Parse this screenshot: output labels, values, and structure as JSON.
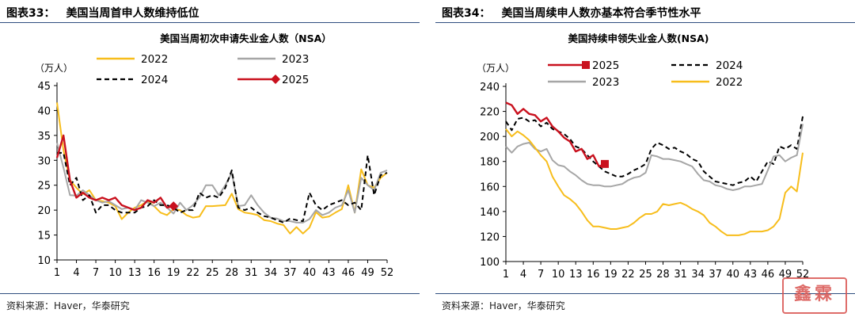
{
  "left": {
    "figure_label": "图表33：",
    "figure_title": "美国当周首申人数维持低位",
    "source": "资料来源：Haver，华泰研究"
  },
  "right": {
    "figure_label": "图表34：",
    "figure_title": "美国当周续申人数亦基本符合季节性水平",
    "source": "资料来源：Haver，华泰研究"
  },
  "watermark": {
    "text": "鑫霖"
  },
  "colors": {
    "y2022": "#f7bd1b",
    "y2023": "#a6a6a6",
    "y2024": "#000000",
    "y2025": "#c9111e",
    "rule": "#2f4e7f"
  },
  "chart_data": [
    {
      "type": "line",
      "title": "美国当周初次申请失业金人数（NSA）",
      "ylabel": "（万人）",
      "xlabel": "",
      "ylim": [
        10,
        45
      ],
      "yticks": [
        10,
        15,
        20,
        25,
        30,
        35,
        40,
        45
      ],
      "xlim": [
        1,
        52
      ],
      "xticks": [
        1,
        4,
        7,
        10,
        13,
        16,
        19,
        22,
        25,
        28,
        31,
        34,
        37,
        40,
        43,
        46,
        49,
        52
      ],
      "legend": "top",
      "series": [
        {
          "name": "2022",
          "color": "#f7bd1b",
          "style": "solid",
          "marker": "none",
          "values": [
            41.6,
            32.0,
            26.0,
            24.5,
            23.2,
            24.0,
            22.0,
            21.8,
            21.5,
            20.8,
            18.2,
            19.5,
            20.5,
            21.0,
            21.8,
            20.8,
            19.5,
            19.0,
            20.2,
            20.0,
            19.0,
            18.5,
            18.7,
            20.8,
            20.8,
            20.9,
            21.0,
            23.3,
            20.2,
            19.5,
            19.3,
            19.0,
            18.0,
            17.8,
            17.3,
            17.0,
            15.3,
            16.6,
            15.3,
            16.5,
            19.6,
            18.5,
            18.7,
            19.5,
            20.2,
            25.0,
            19.5,
            28.2,
            25.0,
            24.5,
            26.5,
            27.5
          ]
        },
        {
          "name": "2023",
          "color": "#a6a6a6",
          "style": "solid",
          "marker": "none",
          "values": [
            33.5,
            28.5,
            23.0,
            22.9,
            24.0,
            23.0,
            22.0,
            21.5,
            21.8,
            21.0,
            20.2,
            20.5,
            20.0,
            22.0,
            21.5,
            20.8,
            21.5,
            20.5,
            19.3,
            21.5,
            20.0,
            21.0,
            22.5,
            25.0,
            25.0,
            23.0,
            25.0,
            27.5,
            20.8,
            21.0,
            23.0,
            21.0,
            19.5,
            18.5,
            18.3,
            17.8,
            17.8,
            17.5,
            17.5,
            18.2,
            20.0,
            19.0,
            19.5,
            20.5,
            21.0,
            24.0,
            19.5,
            26.5,
            25.0,
            24.0,
            27.5,
            28.0
          ]
        },
        {
          "name": "2024",
          "color": "#000000",
          "style": "dashed",
          "marker": "none",
          "values": [
            31.5,
            31.5,
            25.0,
            26.5,
            22.0,
            23.0,
            19.5,
            21.0,
            21.0,
            20.0,
            19.5,
            19.5,
            19.5,
            20.5,
            20.8,
            22.0,
            21.0,
            21.0,
            20.5,
            19.5,
            20.0,
            20.0,
            23.5,
            22.5,
            23.0,
            22.5,
            24.5,
            28.0,
            20.5,
            20.0,
            20.5,
            19.5,
            18.8,
            18.5,
            18.0,
            17.5,
            18.3,
            18.0,
            17.8,
            23.5,
            21.0,
            20.0,
            21.0,
            21.5,
            22.0,
            21.0,
            21.5,
            20.0,
            31.0,
            23.0,
            27.0,
            27.5
          ]
        },
        {
          "name": "2025",
          "color": "#c9111e",
          "style": "solid",
          "marker": "diamond",
          "values": [
            30.5,
            35.0,
            26.0,
            22.5,
            23.5,
            22.5,
            22.0,
            22.5,
            22.0,
            22.5,
            21.0,
            20.5,
            20.0,
            20.5,
            22.0,
            21.5,
            22.5,
            20.5,
            20.8
          ]
        }
      ]
    },
    {
      "type": "line",
      "title": "美国持续申领失业金人数(NSA)",
      "ylabel": "（万人）",
      "xlabel": "",
      "ylim": [
        100,
        240
      ],
      "yticks": [
        100,
        120,
        140,
        160,
        180,
        200,
        220,
        240
      ],
      "xlim": [
        1,
        52
      ],
      "xticks": [
        1,
        4,
        7,
        10,
        13,
        16,
        19,
        22,
        25,
        28,
        31,
        34,
        37,
        40,
        43,
        46,
        49,
        52
      ],
      "legend": "top",
      "series": [
        {
          "name": "2025",
          "color": "#c9111e",
          "style": "solid",
          "marker": "square",
          "values": [
            227,
            225,
            218,
            222,
            218,
            217,
            212,
            215,
            208,
            204,
            199,
            196,
            188,
            190,
            182,
            185,
            176,
            178
          ]
        },
        {
          "name": "2024",
          "color": "#000000",
          "style": "dashed",
          "marker": "none",
          "values": [
            212,
            205,
            214,
            215,
            212,
            213,
            208,
            211,
            206,
            204,
            202,
            198,
            192,
            190,
            185,
            180,
            176,
            172,
            170,
            168,
            168,
            170,
            173,
            175,
            178,
            190,
            195,
            193,
            190,
            191,
            188,
            186,
            182,
            180,
            172,
            168,
            164,
            163,
            162,
            161,
            163,
            164,
            168,
            164,
            172,
            180,
            178,
            192,
            190,
            193,
            190,
            216
          ]
        },
        {
          "name": "2023",
          "color": "#a6a6a6",
          "style": "solid",
          "marker": "none",
          "values": [
            192,
            187,
            192,
            194,
            195,
            190,
            188,
            190,
            181,
            177,
            176,
            172,
            169,
            165,
            162,
            161,
            161,
            160,
            160,
            161,
            162,
            165,
            167,
            168,
            171,
            185,
            184,
            182,
            182,
            181,
            180,
            178,
            176,
            170,
            165,
            164,
            161,
            160,
            158,
            157,
            158,
            160,
            160,
            161,
            162,
            173,
            184,
            185,
            180,
            183,
            185,
            210
          ]
        },
        {
          "name": "2022",
          "color": "#f7bd1b",
          "style": "solid",
          "marker": "none",
          "values": [
            206,
            200,
            204,
            201,
            197,
            191,
            185,
            180,
            168,
            160,
            153,
            150,
            146,
            140,
            133,
            128,
            128,
            127,
            126,
            126,
            127,
            128,
            131,
            135,
            138,
            138,
            140,
            146,
            145,
            146,
            147,
            145,
            142,
            140,
            137,
            131,
            128,
            124,
            121,
            121,
            121,
            122,
            124,
            124,
            124,
            125,
            128,
            134,
            155,
            160,
            156,
            187
          ]
        }
      ]
    }
  ]
}
